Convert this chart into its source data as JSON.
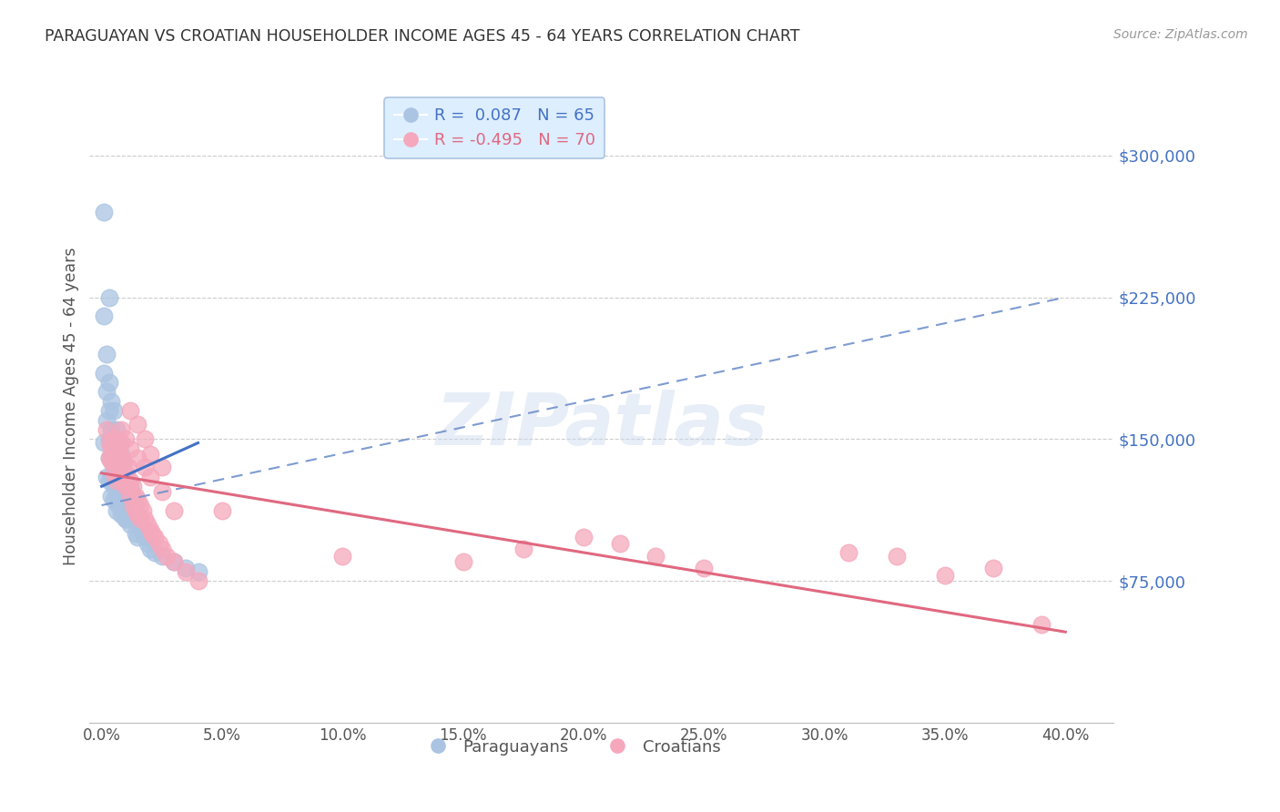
{
  "title": "PARAGUAYAN VS CROATIAN HOUSEHOLDER INCOME AGES 45 - 64 YEARS CORRELATION CHART",
  "source": "Source: ZipAtlas.com",
  "ylabel": "Householder Income Ages 45 - 64 years",
  "xlabel_ticks": [
    "0.0%",
    "5.0%",
    "10.0%",
    "15.0%",
    "20.0%",
    "25.0%",
    "30.0%",
    "35.0%",
    "40.0%"
  ],
  "xlabel_vals": [
    0.0,
    0.05,
    0.1,
    0.15,
    0.2,
    0.25,
    0.3,
    0.35,
    0.4
  ],
  "ytick_labels": [
    "$75,000",
    "$150,000",
    "$225,000",
    "$300,000"
  ],
  "ytick_vals": [
    75000,
    150000,
    225000,
    300000
  ],
  "ylim": [
    0,
    335000
  ],
  "xlim": [
    -0.005,
    0.42
  ],
  "paraguayan_R": 0.087,
  "paraguayan_N": 65,
  "croatian_R": -0.495,
  "croatian_N": 70,
  "paraguayan_color": "#aac4e2",
  "croatian_color": "#f5a8bc",
  "paraguayan_line_color": "#4472c4",
  "croatian_line_color": "#e06880",
  "dashed_line_color": "#7090cc",
  "legend_box_facecolor": "#ddeeff",
  "legend_box_edgecolor": "#aac4e2",
  "paraguayan_label": "Paraguayans",
  "croatian_label": "Croatians",
  "par_line_x0": 0.0,
  "par_line_x1": 0.04,
  "par_line_y0": 125000,
  "par_line_y1": 148000,
  "dash_line_x0": 0.0,
  "dash_line_x1": 0.4,
  "dash_line_y0": 115000,
  "dash_line_y1": 225000,
  "cro_line_x0": 0.0,
  "cro_line_x1": 0.4,
  "cro_line_y0": 132000,
  "cro_line_y1": 48000,
  "paraguayan_x": [
    0.001,
    0.001,
    0.001,
    0.002,
    0.002,
    0.002,
    0.003,
    0.003,
    0.003,
    0.003,
    0.004,
    0.004,
    0.004,
    0.004,
    0.005,
    0.005,
    0.005,
    0.005,
    0.006,
    0.006,
    0.006,
    0.006,
    0.007,
    0.007,
    0.007,
    0.008,
    0.008,
    0.008,
    0.009,
    0.009,
    0.01,
    0.01,
    0.01,
    0.011,
    0.011,
    0.012,
    0.012,
    0.013,
    0.013,
    0.014,
    0.015,
    0.015,
    0.016,
    0.017,
    0.018,
    0.019,
    0.02,
    0.022,
    0.025,
    0.03,
    0.002,
    0.003,
    0.004,
    0.005,
    0.006,
    0.007,
    0.008,
    0.009,
    0.01,
    0.012,
    0.014,
    0.003,
    0.035,
    0.04,
    0.001
  ],
  "paraguayan_y": [
    270000,
    215000,
    185000,
    195000,
    175000,
    160000,
    180000,
    165000,
    150000,
    140000,
    170000,
    155000,
    140000,
    130000,
    165000,
    148000,
    135000,
    125000,
    155000,
    142000,
    130000,
    120000,
    148000,
    135000,
    125000,
    142000,
    128000,
    118000,
    138000,
    122000,
    132000,
    118000,
    108000,
    128000,
    115000,
    125000,
    112000,
    120000,
    108000,
    115000,
    108000,
    98000,
    105000,
    100000,
    98000,
    95000,
    92000,
    90000,
    88000,
    85000,
    130000,
    128000,
    120000,
    118000,
    112000,
    115000,
    110000,
    112000,
    108000,
    105000,
    100000,
    225000,
    82000,
    80000,
    148000
  ],
  "croatian_x": [
    0.002,
    0.003,
    0.003,
    0.004,
    0.004,
    0.005,
    0.005,
    0.005,
    0.006,
    0.006,
    0.006,
    0.007,
    0.007,
    0.008,
    0.008,
    0.008,
    0.009,
    0.009,
    0.01,
    0.01,
    0.011,
    0.011,
    0.012,
    0.012,
    0.013,
    0.013,
    0.014,
    0.014,
    0.015,
    0.015,
    0.016,
    0.016,
    0.017,
    0.018,
    0.019,
    0.02,
    0.021,
    0.022,
    0.024,
    0.025,
    0.027,
    0.03,
    0.035,
    0.04,
    0.008,
    0.01,
    0.012,
    0.015,
    0.018,
    0.02,
    0.025,
    0.03,
    0.012,
    0.015,
    0.018,
    0.02,
    0.025,
    0.1,
    0.15,
    0.175,
    0.2,
    0.215,
    0.23,
    0.25,
    0.31,
    0.33,
    0.35,
    0.37,
    0.39,
    0.05
  ],
  "croatian_y": [
    155000,
    148000,
    140000,
    145000,
    138000,
    150000,
    140000,
    132000,
    148000,
    138000,
    128000,
    142000,
    135000,
    148000,
    140000,
    130000,
    138000,
    128000,
    132000,
    125000,
    135000,
    125000,
    128000,
    120000,
    125000,
    115000,
    120000,
    112000,
    118000,
    110000,
    115000,
    108000,
    112000,
    108000,
    105000,
    102000,
    100000,
    98000,
    95000,
    92000,
    88000,
    85000,
    80000,
    75000,
    155000,
    150000,
    145000,
    140000,
    135000,
    130000,
    122000,
    112000,
    165000,
    158000,
    150000,
    142000,
    135000,
    88000,
    85000,
    92000,
    98000,
    95000,
    88000,
    82000,
    90000,
    88000,
    78000,
    82000,
    52000,
    112000
  ],
  "background_color": "#ffffff",
  "grid_color": "#cccccc",
  "title_color": "#333333",
  "axis_label_color": "#555555",
  "ytick_color": "#4472c4",
  "xtick_color": "#555555"
}
